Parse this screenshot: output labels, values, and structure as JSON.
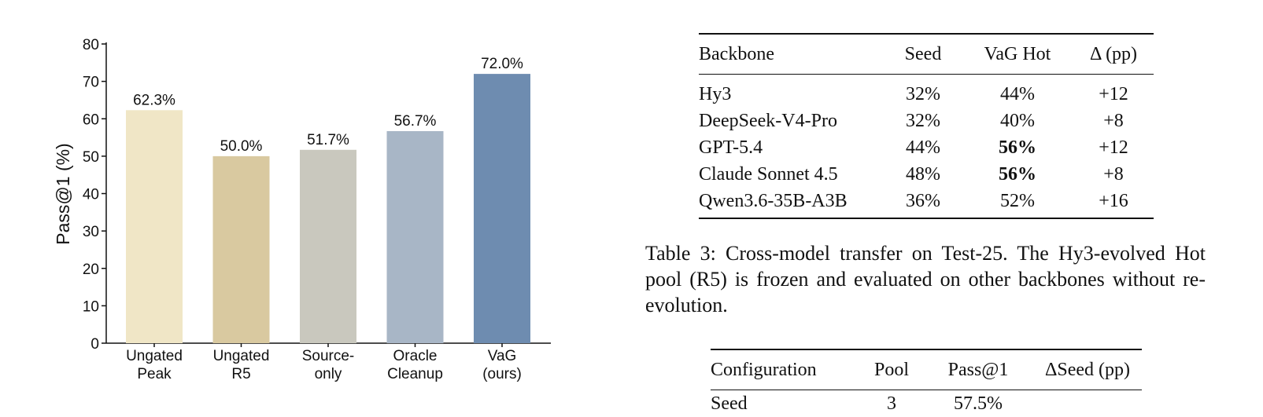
{
  "chart_data": {
    "type": "bar",
    "categories": [
      [
        "Ungated",
        "Peak"
      ],
      [
        "Ungated",
        "R5"
      ],
      [
        "Source-",
        "only"
      ],
      [
        "Oracle",
        "Cleanup"
      ],
      [
        "VaG",
        "(ours)"
      ]
    ],
    "values": [
      62.3,
      50.0,
      51.7,
      56.7,
      72.0
    ],
    "data_labels": [
      "62.3%",
      "50.0%",
      "51.7%",
      "56.7%",
      "72.0%"
    ],
    "bar_colors": [
      "#f0e6c6",
      "#d9c9a0",
      "#c9c8be",
      "#a8b6c6",
      "#6e8cb0"
    ],
    "ylabel": "Pass@1 (%)",
    "xlabel": "",
    "title": "",
    "ylim": [
      0,
      80
    ],
    "yticks": [
      0,
      10,
      20,
      30,
      40,
      50,
      60,
      70,
      80
    ],
    "grid": false
  },
  "table3": {
    "headers": [
      "Backbone",
      "Seed",
      "VaG Hot",
      "Δ (pp)"
    ],
    "rows": [
      {
        "backbone": "Hy3",
        "seed": "32%",
        "vag_hot": "44%",
        "delta": "+12",
        "vag_bold": false
      },
      {
        "backbone": "DeepSeek-V4-Pro",
        "seed": "32%",
        "vag_hot": "40%",
        "delta": "+8",
        "vag_bold": false
      },
      {
        "backbone": "GPT-5.4",
        "seed": "44%",
        "vag_hot": "56%",
        "delta": "+12",
        "vag_bold": true
      },
      {
        "backbone": "Claude Sonnet 4.5",
        "seed": "48%",
        "vag_hot": "56%",
        "delta": "+8",
        "vag_bold": true
      },
      {
        "backbone": "Qwen3.6-35B-A3B",
        "seed": "36%",
        "vag_hot": "52%",
        "delta": "+16",
        "vag_bold": false
      }
    ],
    "caption": "Table 3: Cross-model transfer on Test-25. The Hy3-evolved Hot pool (R5) is frozen and evaluated on other backbones without re-evolution."
  },
  "table4": {
    "headers": [
      "Configuration",
      "Pool",
      "Pass@1",
      "ΔSeed (pp)"
    ],
    "partial_row": {
      "configuration": "Seed",
      "pool": "3",
      "pass": "57.5%",
      "delta": ""
    }
  }
}
